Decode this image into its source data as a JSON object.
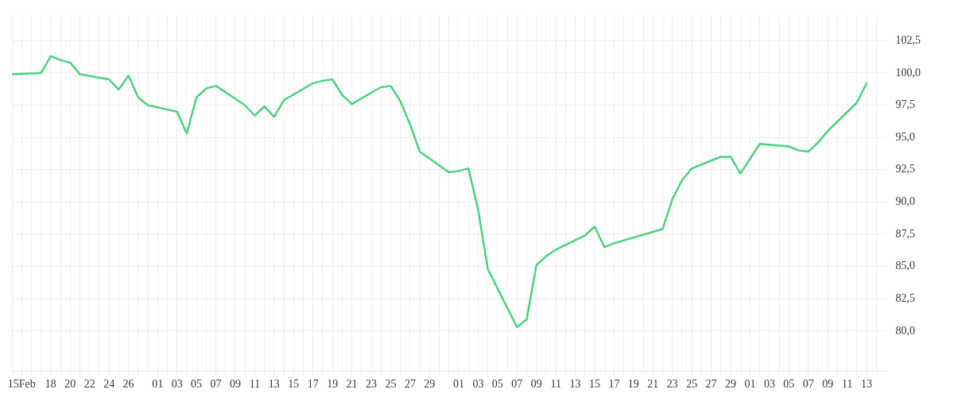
{
  "chart_data": {
    "type": "line",
    "x": [
      "--02-14",
      "--02-17",
      "--02-18",
      "--02-19",
      "--02-20",
      "--02-21",
      "--02-24",
      "--02-25",
      "--02-26",
      "--02-27",
      "--02-28",
      "--03-03",
      "--03-04",
      "--03-05",
      "--03-06",
      "--03-07",
      "--03-10",
      "--03-11",
      "--03-12",
      "--03-13",
      "--03-14",
      "--03-17",
      "--03-18",
      "--03-19",
      "--03-20",
      "--03-21",
      "--03-24",
      "--03-25",
      "--03-26",
      "--03-27",
      "--03-28",
      "--03-31",
      "--04-01",
      "--04-02",
      "--04-03",
      "--04-04",
      "--04-07",
      "--04-08",
      "--04-09",
      "--04-10",
      "--04-11",
      "--04-14",
      "--04-15",
      "--04-16",
      "--04-17",
      "--04-22",
      "--04-23",
      "--04-24",
      "--04-25",
      "--04-28",
      "--04-29",
      "--04-30",
      "--05-02",
      "--05-05",
      "--05-06",
      "--05-07",
      "--05-08",
      "--05-09",
      "--05-12",
      "--05-13"
    ],
    "series": [
      {
        "color": "#4cd07d",
        "values": [
          99.9,
          100.0,
          101.3,
          101.0,
          100.8,
          99.9,
          99.5,
          98.7,
          99.8,
          98.1,
          97.5,
          97.0,
          95.3,
          98.1,
          98.8,
          99.0,
          97.5,
          96.7,
          97.4,
          96.6,
          97.9,
          99.2,
          99.4,
          99.5,
          98.3,
          97.6,
          98.9,
          99.0,
          97.8,
          96.0,
          93.9,
          92.3,
          92.4,
          92.6,
          89.4,
          84.8,
          80.3,
          80.9,
          85.1,
          85.8,
          86.3,
          87.4,
          88.1,
          86.5,
          86.8,
          87.9,
          90.2,
          91.7,
          92.6,
          93.5,
          93.5,
          92.2,
          94.5,
          94.3,
          94.0,
          93.9,
          94.6,
          95.5,
          97.7,
          99.2
        ]
      }
    ],
    "xlim": [
      "--02-14",
      "--05-15"
    ],
    "xticks": [
      {
        "value": "--02-14",
        "label": null
      },
      {
        "value": "--02-15",
        "label": "15Feb"
      },
      {
        "value": "--02-16",
        "label": null
      },
      {
        "value": "--02-17",
        "label": null
      },
      {
        "value": "--02-18",
        "label": "18"
      },
      {
        "value": "--02-19",
        "label": null
      },
      {
        "value": "--02-20",
        "label": "20"
      },
      {
        "value": "--02-21",
        "label": null
      },
      {
        "value": "--02-22",
        "label": "22"
      },
      {
        "value": "--02-23",
        "label": null
      },
      {
        "value": "--02-24",
        "label": "24"
      },
      {
        "value": "--02-25",
        "label": null
      },
      {
        "value": "--02-26",
        "label": "26"
      },
      {
        "value": "--02-27",
        "label": null
      },
      {
        "value": "--02-28",
        "label": null
      },
      {
        "value": "--03-01",
        "label": "01"
      },
      {
        "value": "--03-02",
        "label": null
      },
      {
        "value": "--03-03",
        "label": "03"
      },
      {
        "value": "--03-04",
        "label": null
      },
      {
        "value": "--03-05",
        "label": "05"
      },
      {
        "value": "--03-06",
        "label": null
      },
      {
        "value": "--03-07",
        "label": "07"
      },
      {
        "value": "--03-08",
        "label": null
      },
      {
        "value": "--03-09",
        "label": "09"
      },
      {
        "value": "--03-10",
        "label": null
      },
      {
        "value": "--03-11",
        "label": "11"
      },
      {
        "value": "--03-12",
        "label": null
      },
      {
        "value": "--03-13",
        "label": "13"
      },
      {
        "value": "--03-14",
        "label": null
      },
      {
        "value": "--03-15",
        "label": "15"
      },
      {
        "value": "--03-16",
        "label": null
      },
      {
        "value": "--03-17",
        "label": "17"
      },
      {
        "value": "--03-18",
        "label": null
      },
      {
        "value": "--03-19",
        "label": "19"
      },
      {
        "value": "--03-20",
        "label": null
      },
      {
        "value": "--03-21",
        "label": "21"
      },
      {
        "value": "--03-22",
        "label": null
      },
      {
        "value": "--03-23",
        "label": "23"
      },
      {
        "value": "--03-24",
        "label": null
      },
      {
        "value": "--03-25",
        "label": "25"
      },
      {
        "value": "--03-26",
        "label": null
      },
      {
        "value": "--03-27",
        "label": "27"
      },
      {
        "value": "--03-28",
        "label": null
      },
      {
        "value": "--03-29",
        "label": "29"
      },
      {
        "value": "--03-30",
        "label": null
      },
      {
        "value": "--03-31",
        "label": null
      },
      {
        "value": "--04-01",
        "label": "01"
      },
      {
        "value": "--04-02",
        "label": null
      },
      {
        "value": "--04-03",
        "label": "03"
      },
      {
        "value": "--04-04",
        "label": null
      },
      {
        "value": "--04-05",
        "label": "05"
      },
      {
        "value": "--04-06",
        "label": null
      },
      {
        "value": "--04-07",
        "label": "07"
      },
      {
        "value": "--04-08",
        "label": null
      },
      {
        "value": "--04-09",
        "label": "09"
      },
      {
        "value": "--04-10",
        "label": null
      },
      {
        "value": "--04-11",
        "label": "11"
      },
      {
        "value": "--04-12",
        "label": null
      },
      {
        "value": "--04-13",
        "label": "13"
      },
      {
        "value": "--04-14",
        "label": null
      },
      {
        "value": "--04-15",
        "label": "15"
      },
      {
        "value": "--04-16",
        "label": null
      },
      {
        "value": "--04-17",
        "label": "17"
      },
      {
        "value": "--04-18",
        "label": null
      },
      {
        "value": "--04-19",
        "label": "19"
      },
      {
        "value": "--04-20",
        "label": null
      },
      {
        "value": "--04-21",
        "label": "21"
      },
      {
        "value": "--04-22",
        "label": null
      },
      {
        "value": "--04-23",
        "label": "23"
      },
      {
        "value": "--04-24",
        "label": null
      },
      {
        "value": "--04-25",
        "label": "25"
      },
      {
        "value": "--04-26",
        "label": null
      },
      {
        "value": "--04-27",
        "label": "27"
      },
      {
        "value": "--04-28",
        "label": null
      },
      {
        "value": "--04-29",
        "label": "29"
      },
      {
        "value": "--04-30",
        "label": null
      },
      {
        "value": "--05-01",
        "label": "01"
      },
      {
        "value": "--05-02",
        "label": null
      },
      {
        "value": "--05-03",
        "label": "03"
      },
      {
        "value": "--05-04",
        "label": null
      },
      {
        "value": "--05-05",
        "label": "05"
      },
      {
        "value": "--05-06",
        "label": null
      },
      {
        "value": "--05-07",
        "label": "07"
      },
      {
        "value": "--05-08",
        "label": null
      },
      {
        "value": "--05-09",
        "label": "09"
      },
      {
        "value": "--05-10",
        "label": null
      },
      {
        "value": "--05-11",
        "label": "11"
      },
      {
        "value": "--05-12",
        "label": null
      },
      {
        "value": "--05-13",
        "label": "13"
      },
      {
        "value": "--05-14",
        "label": null
      }
    ],
    "ylim": [
      76.9,
      104.4
    ],
    "yticks": [
      {
        "value": 80,
        "label": "80,0"
      },
      {
        "value": 82.5,
        "label": "82,5"
      },
      {
        "value": 85,
        "label": "85,0"
      },
      {
        "value": 87.5,
        "label": "87,5"
      },
      {
        "value": 90,
        "label": "90,0"
      },
      {
        "value": 92.5,
        "label": "92,5"
      },
      {
        "value": 95,
        "label": "95,0"
      },
      {
        "value": 97.5,
        "label": "97,5"
      },
      {
        "value": 100,
        "label": "100,0"
      },
      {
        "value": 102.5,
        "label": "102,5"
      }
    ],
    "grid": true,
    "legend": false,
    "marker": "none",
    "line_style": "solid"
  }
}
